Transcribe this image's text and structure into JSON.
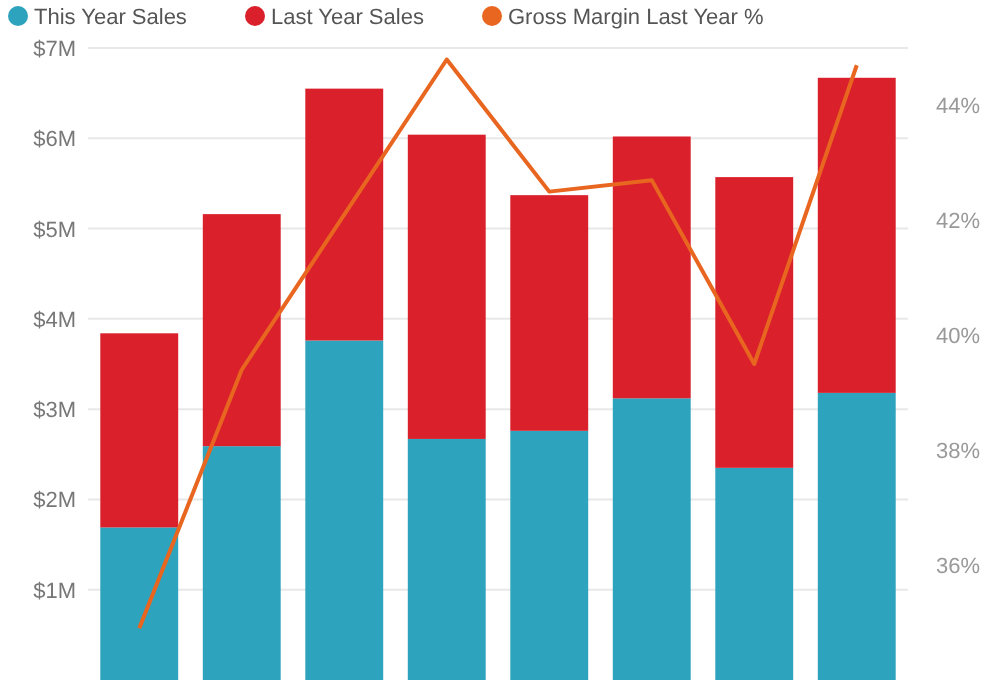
{
  "chart_data": {
    "type": "bar",
    "stacked": true,
    "categories": [
      null,
      null,
      null,
      null,
      null,
      null,
      null,
      null
    ],
    "series": [
      {
        "name": "This Year Sales",
        "color": "#2ea3bd",
        "values": [
          1.69,
          2.59,
          3.76,
          2.67,
          2.76,
          3.12,
          2.35,
          3.18
        ]
      },
      {
        "name": "Last Year Sales",
        "color": "#d9202b",
        "values": [
          2.15,
          2.57,
          2.79,
          3.37,
          2.61,
          2.9,
          3.22,
          3.49
        ]
      },
      {
        "name": "Gross Margin Last Year %",
        "color": "#e8661f",
        "type": "line",
        "axis": "y2",
        "values": [
          34.9,
          39.4,
          42.1,
          44.8,
          42.5,
          42.7,
          39.5,
          44.7
        ]
      }
    ],
    "ylim": [
      0,
      7
    ],
    "yticks": [
      {
        "value": 1,
        "label": "$1M"
      },
      {
        "value": 2,
        "label": "$2M"
      },
      {
        "value": 3,
        "label": "$3M"
      },
      {
        "value": 4,
        "label": "$4M"
      },
      {
        "value": 5,
        "label": "$5M"
      },
      {
        "value": 6,
        "label": "$6M"
      },
      {
        "value": 7,
        "label": "$7M"
      }
    ],
    "y2lim": [
      34,
      45
    ],
    "y2ticks": [
      {
        "value": 36,
        "label": "36%"
      },
      {
        "value": 38,
        "label": "38%"
      },
      {
        "value": 40,
        "label": "40%"
      },
      {
        "value": 42,
        "label": "42%"
      },
      {
        "value": 44,
        "label": "44%"
      }
    ],
    "grid": "y",
    "legend": "top left",
    "line_style": "solid",
    "marker": "none"
  }
}
